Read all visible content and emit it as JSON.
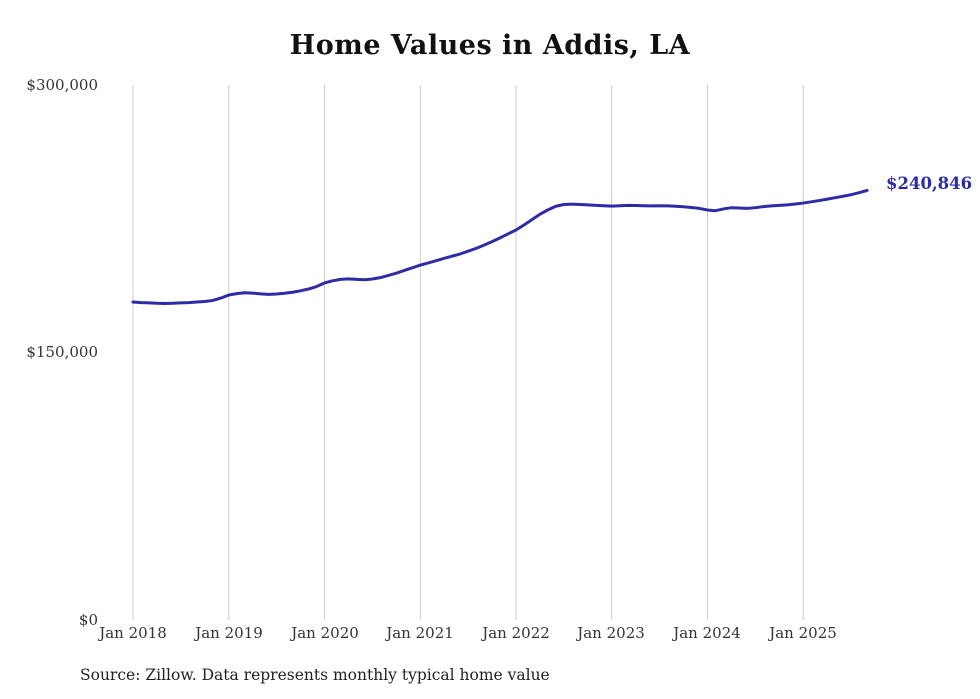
{
  "title": "Home Values in Addis, LA",
  "end_value_label": "$240,846",
  "source_note": "Source: Zillow. Data represents monthly typical home value",
  "colors": {
    "line": "#2e2ba6",
    "gridline": "#cdcdcd",
    "title_text": "#111111",
    "axis_text": "#333333",
    "source_text": "#222222",
    "background": "#ffffff"
  },
  "chart_data": {
    "type": "line",
    "title": "Home Values in Addis, LA",
    "xlabel": "",
    "ylabel": "",
    "ylim": [
      0,
      300000
    ],
    "grid": "vertical-only",
    "legend": "none",
    "y_tick_labels": [
      "$300,000",
      "$150,000",
      "$0"
    ],
    "x_tick_labels": [
      "Jan 2018",
      "Jan 2019",
      "Jan 2020",
      "Jan 2021",
      "Jan 2022",
      "Jan 2023",
      "Jan 2024",
      "Jan 2025"
    ],
    "series_name": "Typical home value (monthly)",
    "start_month": "2018-01",
    "end_month": "2025-09",
    "values": [
      178300,
      178000,
      177800,
      177600,
      177500,
      177600,
      177800,
      178000,
      178300,
      178600,
      179200,
      180500,
      182200,
      183000,
      183500,
      183300,
      182900,
      182600,
      182800,
      183200,
      183800,
      184600,
      185600,
      187000,
      189000,
      190200,
      191000,
      191300,
      191000,
      190800,
      191200,
      192000,
      193200,
      194500,
      196000,
      197500,
      199000,
      200200,
      201500,
      202800,
      204000,
      205300,
      206800,
      208400,
      210200,
      212200,
      214300,
      216500,
      218700,
      221500,
      224500,
      227500,
      230000,
      232000,
      233000,
      233200,
      233000,
      232800,
      232500,
      232300,
      232100,
      232300,
      232500,
      232400,
      232300,
      232200,
      232300,
      232200,
      232000,
      231700,
      231300,
      230800,
      229900,
      229500,
      230500,
      231200,
      231000,
      230800,
      231200,
      231800,
      232200,
      232500,
      232800,
      233300,
      233800,
      234500,
      235200,
      236000,
      236800,
      237600,
      238500,
      239600,
      240846
    ],
    "final_value": 240846
  }
}
